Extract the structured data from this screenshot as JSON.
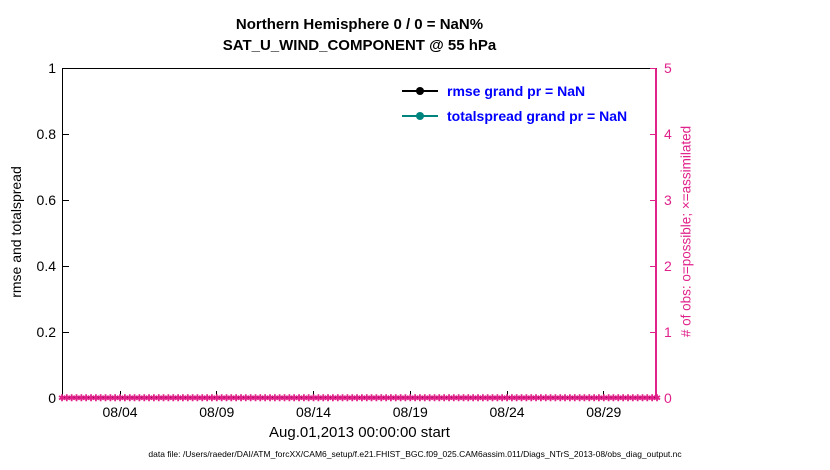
{
  "footer": "data file: /Users/raeder/DAI/ATM_forcXX/CAM6_setup/f.e21.FHIST_BGC.f09_025.CAM6assim.011/Diags_NTrS_2013-08/obs_diag_output.nc",
  "chart_data": {
    "type": "line",
    "title": "Northern Hemisphere 0 / 0 = NaN%",
    "subtitle": "SAT_U_WIND_COMPONENT @ 55 hPa",
    "xlabel": "Aug.01,2013 00:00:00 start",
    "grid": false,
    "x_range_days": [
      0,
      30.75
    ],
    "x_tick_labels": [
      "08/04",
      "08/09",
      "08/14",
      "08/19",
      "08/24",
      "08/29"
    ],
    "x_tick_days": [
      3,
      8,
      13,
      18,
      23,
      28
    ],
    "left_axis": {
      "label": "rmse and totalspread",
      "lim": [
        0,
        1
      ],
      "tick_labels": [
        "0",
        "0.2",
        "0.4",
        "0.6",
        "0.8",
        "1"
      ],
      "tick_values": [
        0,
        0.2,
        0.4,
        0.6,
        0.8,
        1
      ],
      "color": "#000000"
    },
    "right_axis": {
      "label": "# of obs: o=possible; ×=assimilated",
      "lim": [
        0,
        5
      ],
      "tick_labels": [
        "0",
        "1",
        "2",
        "3",
        "4",
        "5"
      ],
      "tick_values": [
        0,
        1,
        2,
        3,
        4,
        5
      ],
      "color": "#e0218a"
    },
    "legend": {
      "text_color": "#0000ff",
      "position": "top-inside",
      "entries": [
        {
          "label": "rmse grand pr = NaN",
          "color": "#000000"
        },
        {
          "label": "totalspread grand pr = NaN",
          "color": "#00857e"
        }
      ]
    },
    "obs_marker_glyph": "✱",
    "series": [
      {
        "name": "rmse",
        "grand_pr": "NaN",
        "values": []
      },
      {
        "name": "totalspread",
        "grand_pr": "NaN",
        "values": []
      },
      {
        "name": "obs_possible",
        "marker": "o",
        "constant_value": 0,
        "points": 124,
        "color": "#e0218a"
      },
      {
        "name": "obs_assimilated",
        "marker": "×",
        "constant_value": 0,
        "points": 124,
        "color": "#e0218a"
      }
    ]
  }
}
